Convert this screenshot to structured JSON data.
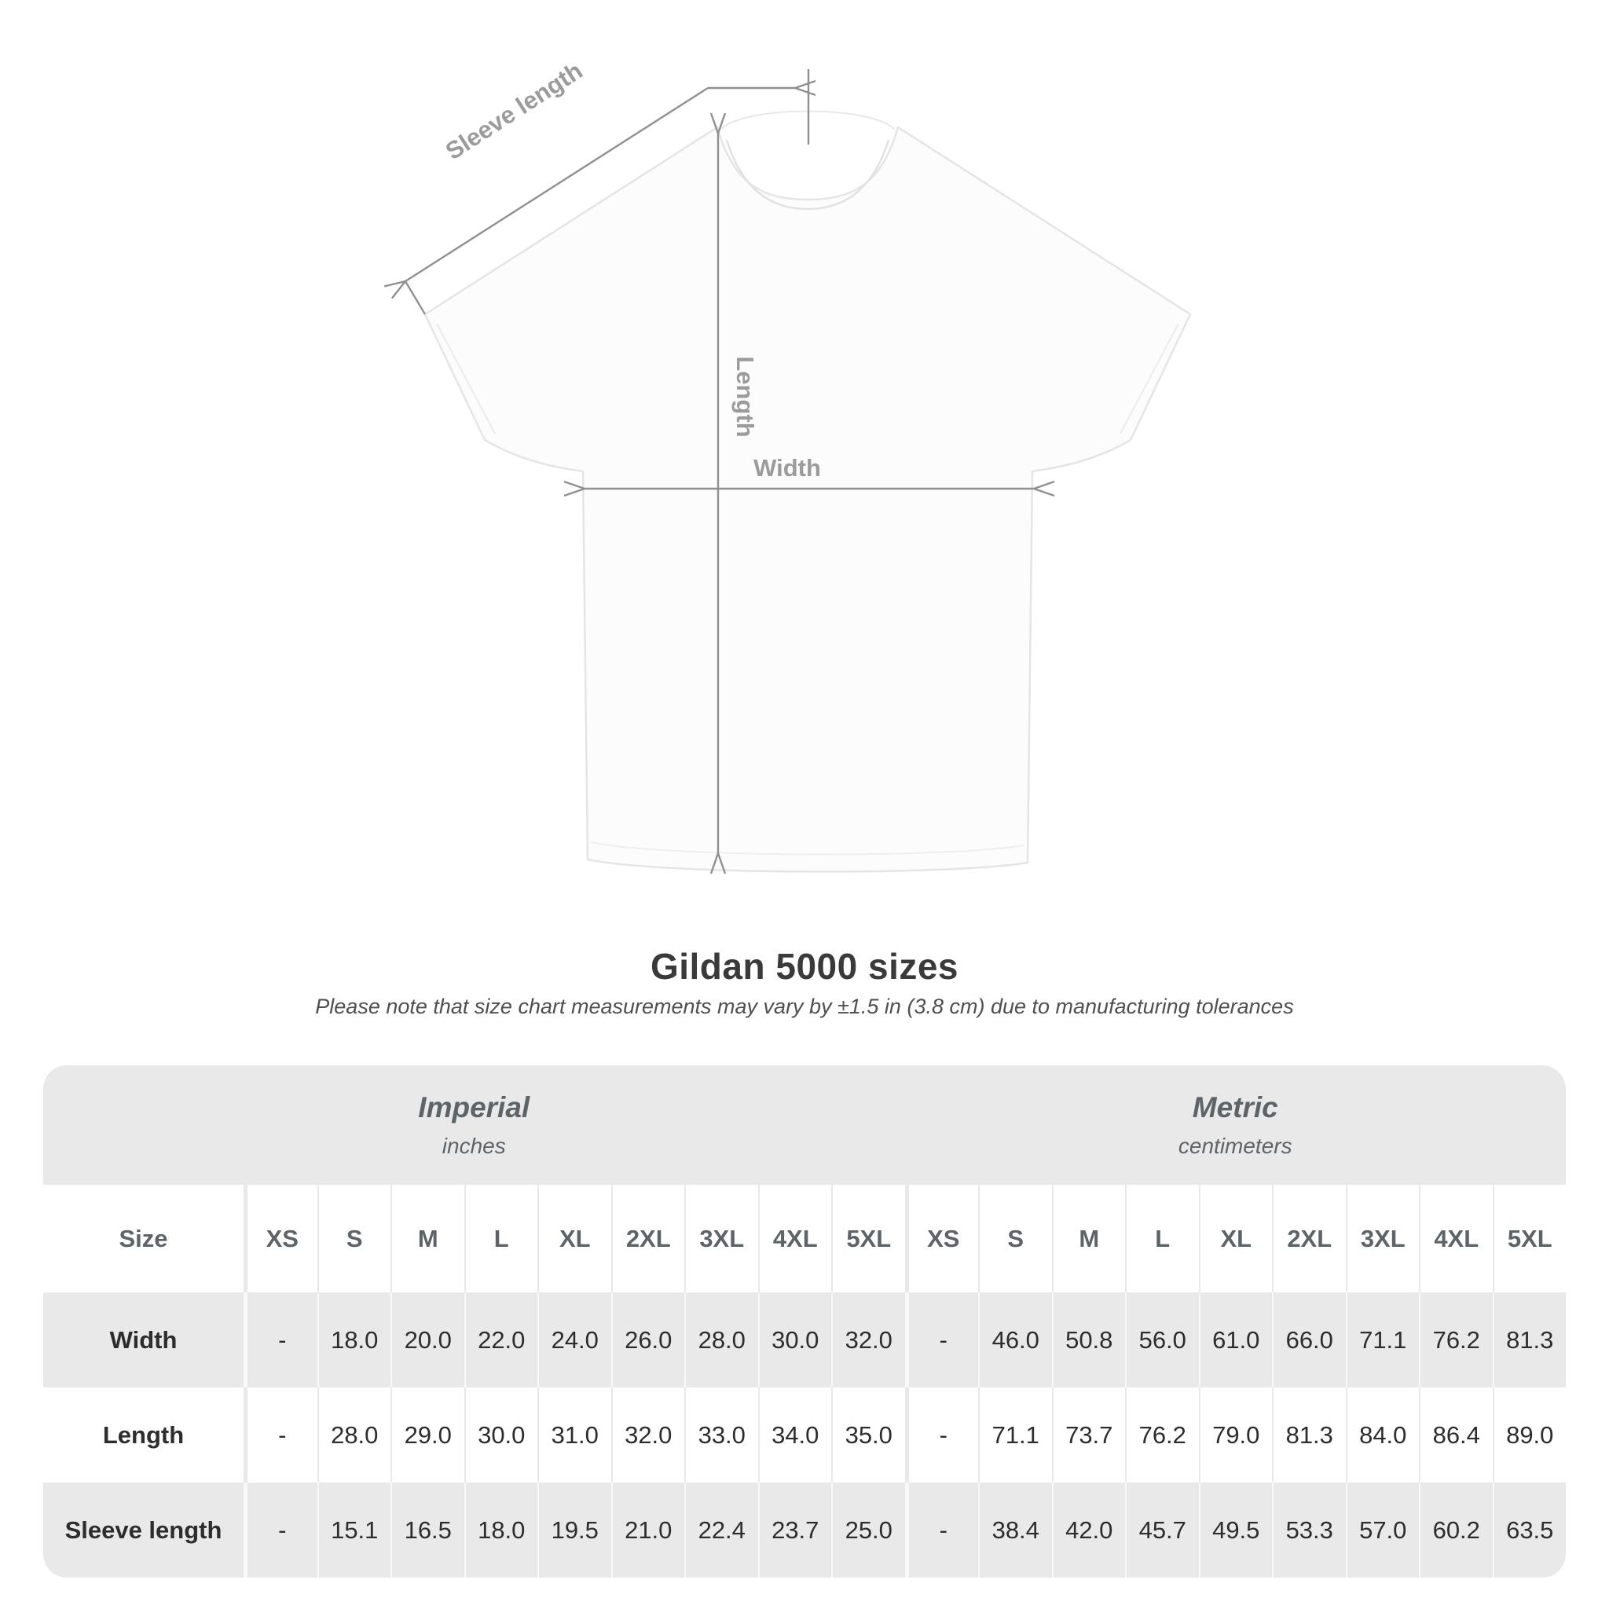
{
  "diagram": {
    "sleeve_length_label": "Sleeve length",
    "length_label": "Length",
    "width_label": "Width"
  },
  "header": {
    "title": "Gildan 5000 sizes",
    "subtitle": "Please note that size chart measurements may vary by ±1.5 in (3.8 cm) due to manufacturing tolerances"
  },
  "table": {
    "unit_groups": [
      {
        "title": "Imperial",
        "subtitle": "inches",
        "span": 10
      },
      {
        "title": "Metric",
        "subtitle": "centimeters",
        "span": 9
      }
    ],
    "size_header": {
      "label": "Size",
      "cols": [
        "XS",
        "S",
        "M",
        "L",
        "XL",
        "2XL",
        "3XL",
        "4XL",
        "5XL",
        "XS",
        "S",
        "M",
        "L",
        "XL",
        "2XL",
        "3XL",
        "4XL",
        "5XL"
      ]
    },
    "rows": [
      {
        "label": "Width",
        "values": [
          "-",
          "18.0",
          "20.0",
          "22.0",
          "24.0",
          "26.0",
          "28.0",
          "30.0",
          "32.0",
          "-",
          "46.0",
          "50.8",
          "56.0",
          "61.0",
          "66.0",
          "71.1",
          "76.2",
          "81.3"
        ]
      },
      {
        "label": "Length",
        "values": [
          "-",
          "28.0",
          "29.0",
          "30.0",
          "31.0",
          "32.0",
          "33.0",
          "34.0",
          "35.0",
          "-",
          "71.1",
          "73.7",
          "76.2",
          "79.0",
          "81.3",
          "84.0",
          "86.4",
          "89.0"
        ]
      },
      {
        "label": "Sleeve length",
        "values": [
          "-",
          "15.1",
          "16.5",
          "18.0",
          "19.5",
          "21.0",
          "22.4",
          "23.7",
          "25.0",
          "-",
          "38.4",
          "42.0",
          "45.7",
          "49.5",
          "53.3",
          "57.0",
          "60.2",
          "63.5"
        ]
      }
    ]
  },
  "colors": {
    "band_gray": "#e9e9e9",
    "header_text": "#5d6468",
    "value_text": "#2d2d2d",
    "diagram_line": "#909090",
    "diagram_label": "#9b9b9b",
    "title_text": "#3a3a3a"
  }
}
